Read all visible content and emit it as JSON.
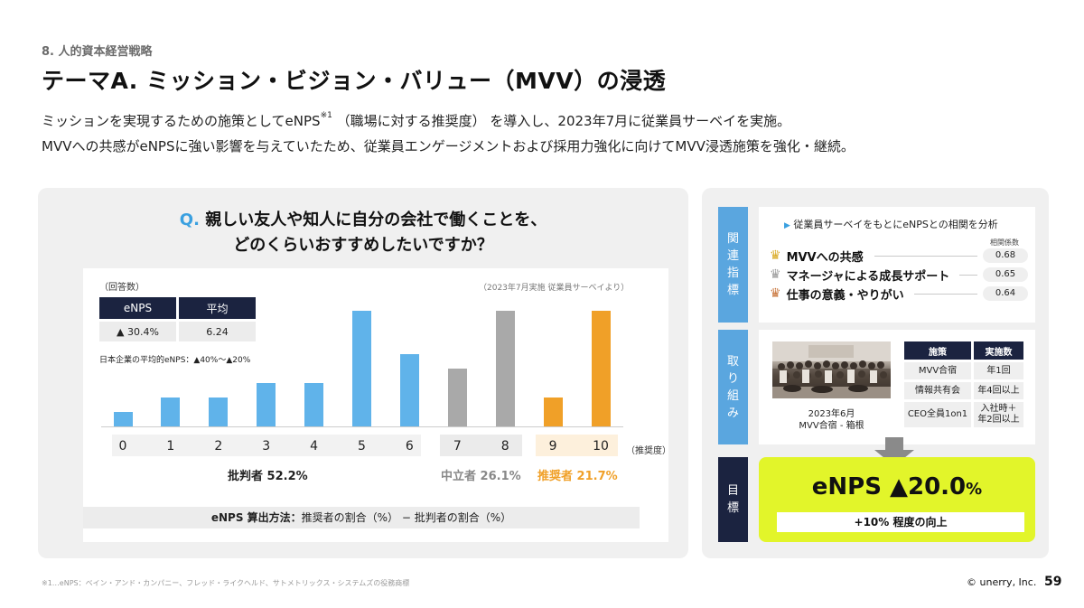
{
  "header": {
    "section": "8. 人的資本経営戦略",
    "title": "テーマA. ミッション・ビジョン・バリュー（MVV）の浸透",
    "desc_line1_a": "ミッションを実現するための施策としてeNPS",
    "desc_line1_sup": "※1",
    "desc_line1_b": "（職場に対する推奨度） を導入し、2023年7月に従業員サーベイを実施。",
    "desc_line2": "MVVへの共感がeNPSに強い影響を与えていたため、従業員エンゲージメントおよび採用力強化に向けてMVV浸透施策を強化・継続。"
  },
  "question": {
    "prefix": "Q.",
    "line1": "親しい友人や知人に自分の会社で働くことを、",
    "line2": "どのくらいおすすめしたいですか？"
  },
  "chart_meta": {
    "count_label": "（回答数）",
    "survey_note": "（2023年7月実施 従業員サーベイより）",
    "avg_note": "日本企業の平均的eNPS：▲40%〜▲20%",
    "formula_bold": "eNPS 算出方法：",
    "formula_rest": "推奨者の割合（%） − 批判者の割合（%）"
  },
  "stats": {
    "headers": [
      "eNPS",
      "平均"
    ],
    "values": [
      "▲ 30.4%",
      "6.24"
    ]
  },
  "chart_data": {
    "type": "bar",
    "categories": [
      "0",
      "1",
      "2",
      "3",
      "4",
      "5",
      "6",
      "7",
      "8",
      "9",
      "10"
    ],
    "values": [
      1,
      2,
      2,
      3,
      3,
      8,
      5,
      4,
      8,
      2,
      8
    ],
    "ylabel": "（回答数）",
    "xlabel": "（推奨度）",
    "groups": [
      {
        "name": "批判者",
        "value": "52.2%",
        "color": "#60b3ea",
        "categories": [
          "0",
          "1",
          "2",
          "3",
          "4",
          "5",
          "6"
        ]
      },
      {
        "name": "中立者",
        "value": "26.1%",
        "color": "#a9a9a9",
        "categories": [
          "7",
          "8"
        ]
      },
      {
        "name": "推奨者",
        "value": "21.7%",
        "color": "#f0a028",
        "categories": [
          "9",
          "10"
        ]
      }
    ]
  },
  "groups_text": {
    "detractor_label": "批判者",
    "detractor_value": "52.2%",
    "passive_label": "中立者",
    "passive_value": "26.1%",
    "promoter_label": "推奨者",
    "promoter_value": "21.7%"
  },
  "side_tabs": {
    "related": [
      "関",
      "連",
      "指",
      "標"
    ],
    "actions": [
      "取",
      "り",
      "組",
      "み"
    ],
    "goal": [
      "目",
      "標"
    ]
  },
  "related": {
    "heading": "従業員サーベイをもとにeNPSとの相関を分析",
    "corr_header": "相関係数",
    "items": [
      {
        "label": "MVVへの共感",
        "value": "0.68",
        "crown_color": "#d9a920"
      },
      {
        "label": "マネージャによる成長サポート",
        "value": "0.65",
        "crown_color": "#9a9a9a"
      },
      {
        "label": "仕事の意義・やりがい",
        "value": "0.64",
        "crown_color": "#c8743a"
      }
    ]
  },
  "actions": {
    "photo_caption_line1": "2023年6月",
    "photo_caption_line2": "MVV合宿 - 箱根",
    "headers": [
      "施策",
      "実施数"
    ],
    "rows": [
      [
        "MVV合宿",
        "年1回"
      ],
      [
        "情報共有会",
        "年4回以上"
      ],
      [
        "CEO全員1on1",
        "入社時＋\n年2回以上"
      ]
    ]
  },
  "goal": {
    "main": "eNPS ▲20.0",
    "pct": "%",
    "sub": "+10% 程度の向上"
  },
  "footer": {
    "note": "※1…eNPS：ベイン・アンド・カンパニー、フレッド・ライクヘルド、サトメトリックス・システムズの役務商標",
    "copyright": "© unerry, Inc.",
    "page": "59"
  }
}
